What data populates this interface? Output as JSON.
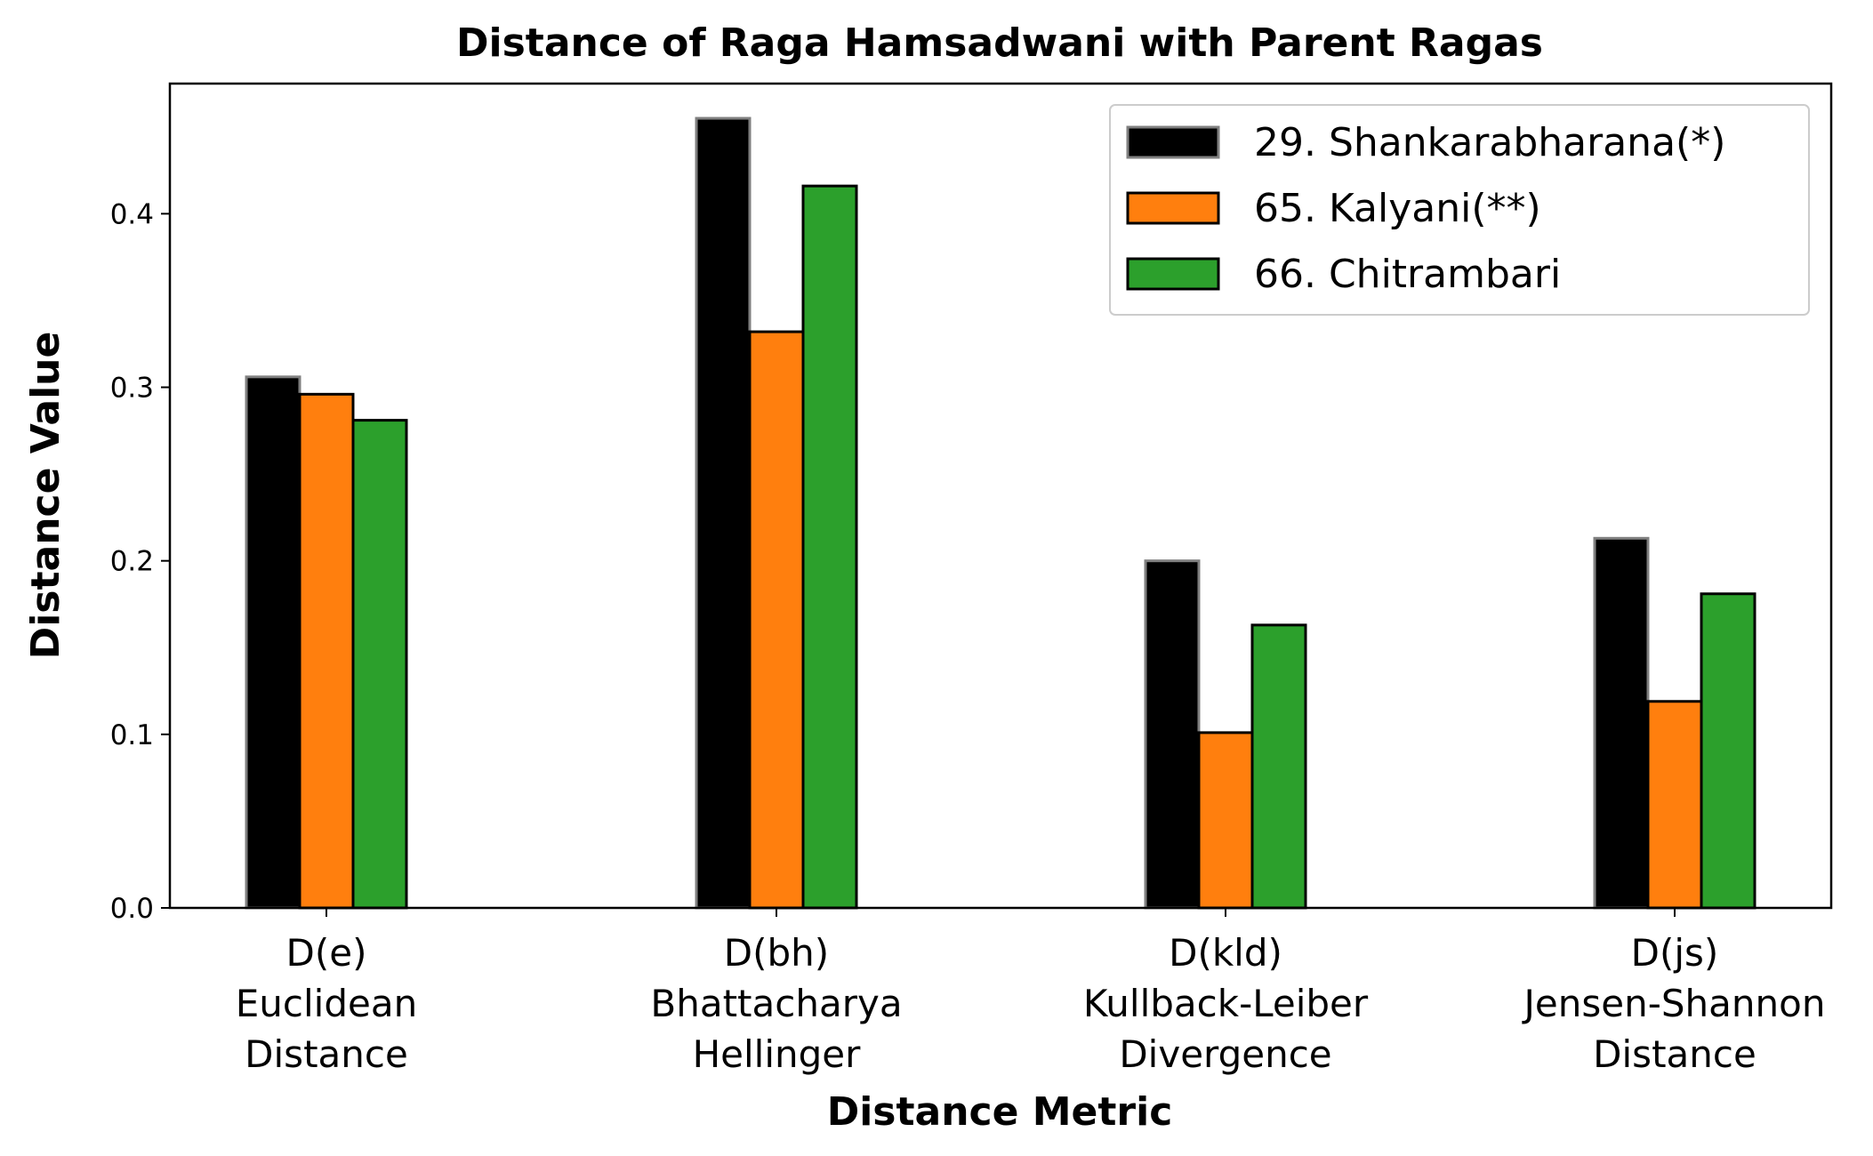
{
  "chart_data": {
    "type": "bar",
    "title": "Distance of Raga Hamsadwani with Parent Ragas",
    "xlabel": "Distance Metric",
    "ylabel": "Distance Value",
    "ylim": [
      0,
      0.475
    ],
    "yticks": [
      "0.0",
      "0.1",
      "0.2",
      "0.3",
      "0.4"
    ],
    "grid": false,
    "legend_position": "top-right",
    "categories": [
      [
        "D(e)",
        "Euclidean",
        "Distance"
      ],
      [
        "D(bh)",
        "Bhattacharya",
        "Hellinger"
      ],
      [
        "D(kld)",
        "Kullback-Leiber",
        "Divergence"
      ],
      [
        "D(js)",
        "Jensen-Shannon",
        "Distance"
      ]
    ],
    "series": [
      {
        "name": "29. Shankarabharana(*)",
        "color": "#000000",
        "edge": "#808080",
        "values": [
          0.306,
          0.455,
          0.2,
          0.213
        ]
      },
      {
        "name": "65. Kalyani(**)",
        "color": "#ff7f0e",
        "edge": "#000000",
        "values": [
          0.296,
          0.332,
          0.101,
          0.119
        ]
      },
      {
        "name": "66. Chitrambari",
        "color": "#2ca02c",
        "edge": "#000000",
        "values": [
          0.281,
          0.416,
          0.163,
          0.181
        ]
      }
    ]
  }
}
